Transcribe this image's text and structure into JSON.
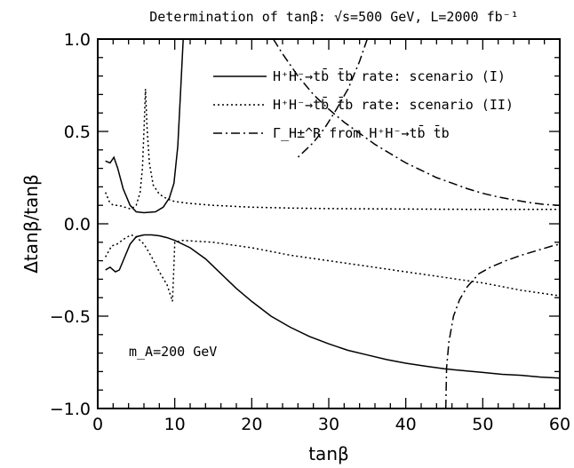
{
  "chart_data": {
    "type": "line",
    "title": "Determination of tanβ: √s=500 GeV, L=2000 fb⁻¹",
    "xlabel": "tanβ",
    "ylabel": "Δtanβ/tanβ",
    "xlim": [
      0,
      60
    ],
    "ylim": [
      -1.0,
      1.0
    ],
    "x_ticks": [
      "0",
      "10",
      "20",
      "30",
      "40",
      "50",
      "60"
    ],
    "y_ticks": [
      "−1.0",
      "−0.5",
      "0.0",
      "0.5",
      "1.0"
    ],
    "grid": false,
    "legend_position": "top-right",
    "annotation": "m_A=200 GeV",
    "series": [
      {
        "name": "H⁺H⁻→tb̄ t̄b rate: scenario (I)",
        "style": "solid",
        "segments": [
          [
            [
              1,
              0.34
            ],
            [
              1.6,
              0.33
            ],
            [
              2.1,
              0.36
            ],
            [
              2.6,
              0.3
            ],
            [
              3.3,
              0.19
            ],
            [
              4.2,
              0.1
            ],
            [
              5,
              0.065
            ],
            [
              6,
              0.06
            ],
            [
              7.5,
              0.065
            ],
            [
              8.5,
              0.09
            ],
            [
              9.3,
              0.14
            ],
            [
              9.9,
              0.22
            ],
            [
              10.4,
              0.42
            ],
            [
              10.8,
              0.75
            ],
            [
              11.1,
              1.0
            ]
          ],
          [
            [
              1,
              -0.25
            ],
            [
              1.6,
              -0.235
            ],
            [
              2.3,
              -0.26
            ],
            [
              2.8,
              -0.25
            ],
            [
              3.4,
              -0.19
            ],
            [
              4.2,
              -0.11
            ],
            [
              5,
              -0.07
            ],
            [
              6,
              -0.06
            ],
            [
              7,
              -0.06
            ],
            [
              8,
              -0.065
            ],
            [
              9,
              -0.075
            ],
            [
              10,
              -0.09
            ],
            [
              12,
              -0.13
            ],
            [
              14,
              -0.19
            ],
            [
              16,
              -0.27
            ],
            [
              18,
              -0.35
            ],
            [
              20,
              -0.42
            ],
            [
              22.5,
              -0.5
            ],
            [
              25,
              -0.56
            ],
            [
              27.5,
              -0.61
            ],
            [
              30,
              -0.65
            ],
            [
              32.5,
              -0.685
            ],
            [
              35,
              -0.71
            ],
            [
              37.5,
              -0.735
            ],
            [
              40,
              -0.755
            ],
            [
              42.5,
              -0.77
            ],
            [
              45,
              -0.785
            ],
            [
              47.5,
              -0.795
            ],
            [
              50,
              -0.805
            ],
            [
              52.5,
              -0.815
            ],
            [
              55,
              -0.82
            ],
            [
              57.5,
              -0.83
            ],
            [
              60,
              -0.835
            ]
          ]
        ]
      },
      {
        "name": "H⁺H⁻→tb̄ t̄b rate: scenario (II)",
        "style": "dotted",
        "segments": [
          [
            [
              1,
              0.17
            ],
            [
              1.5,
              0.12
            ],
            [
              2,
              0.1
            ],
            [
              2.7,
              0.1
            ],
            [
              3.5,
              0.09
            ],
            [
              4.3,
              0.08
            ],
            [
              5,
              0.1
            ],
            [
              5.5,
              0.17
            ],
            [
              5.8,
              0.3
            ],
            [
              6.05,
              0.55
            ],
            [
              6.2,
              0.73
            ],
            [
              6.4,
              0.52
            ],
            [
              6.7,
              0.33
            ],
            [
              7.2,
              0.21
            ],
            [
              8,
              0.16
            ],
            [
              9,
              0.135
            ],
            [
              10,
              0.12
            ],
            [
              12,
              0.11
            ],
            [
              15,
              0.1
            ],
            [
              20,
              0.09
            ],
            [
              25,
              0.085
            ],
            [
              30,
              0.082
            ],
            [
              40,
              0.08
            ],
            [
              50,
              0.078
            ],
            [
              60,
              0.078
            ]
          ],
          [
            [
              1,
              -0.18
            ],
            [
              1.8,
              -0.12
            ],
            [
              2.5,
              -0.11
            ],
            [
              3.5,
              -0.08
            ],
            [
              4.3,
              -0.06
            ],
            [
              5,
              -0.07
            ],
            [
              6,
              -0.11
            ],
            [
              7,
              -0.18
            ],
            [
              8,
              -0.26
            ],
            [
              9,
              -0.33
            ],
            [
              9.7,
              -0.42
            ],
            [
              9.9,
              -0.22
            ],
            [
              10,
              -0.1
            ],
            [
              11,
              -0.09
            ],
            [
              15,
              -0.1
            ],
            [
              20,
              -0.13
            ],
            [
              25,
              -0.17
            ],
            [
              30,
              -0.2
            ],
            [
              35,
              -0.23
            ],
            [
              40,
              -0.26
            ],
            [
              45,
              -0.29
            ],
            [
              50,
              -0.32
            ],
            [
              55,
              -0.36
            ],
            [
              60,
              -0.39
            ]
          ]
        ]
      },
      {
        "name": "Γ_H±^R from H⁺H⁻→tb̄ t̄b",
        "style": "dash-dot",
        "segments": [
          [
            [
              22.8,
              1.0
            ],
            [
              24,
              0.92
            ],
            [
              26,
              0.8
            ],
            [
              28,
              0.7
            ],
            [
              30,
              0.62
            ],
            [
              32,
              0.55
            ],
            [
              34,
              0.49
            ],
            [
              36,
              0.43
            ],
            [
              38,
              0.38
            ],
            [
              40,
              0.33
            ],
            [
              42,
              0.29
            ],
            [
              44,
              0.25
            ],
            [
              46,
              0.22
            ],
            [
              48,
              0.19
            ],
            [
              50,
              0.165
            ],
            [
              52,
              0.145
            ],
            [
              54,
              0.13
            ],
            [
              56,
              0.115
            ],
            [
              58,
              0.105
            ],
            [
              60,
              0.1
            ]
          ],
          [
            [
              35,
              1.0
            ],
            [
              34,
              0.88
            ],
            [
              32.5,
              0.73
            ],
            [
              31,
              0.62
            ],
            [
              29.5,
              0.52
            ],
            [
              28,
              0.44
            ],
            [
              26,
              0.36
            ]
          ],
          [
            [
              45.2,
              -1.0
            ],
            [
              45.3,
              -0.78
            ],
            [
              45.6,
              -0.64
            ],
            [
              46.2,
              -0.5
            ],
            [
              47,
              -0.41
            ],
            [
              48,
              -0.34
            ],
            [
              49.5,
              -0.27
            ],
            [
              51,
              -0.235
            ],
            [
              53,
              -0.2
            ],
            [
              55,
              -0.17
            ],
            [
              57,
              -0.145
            ],
            [
              59,
              -0.12
            ],
            [
              60,
              -0.11
            ]
          ]
        ]
      }
    ]
  }
}
